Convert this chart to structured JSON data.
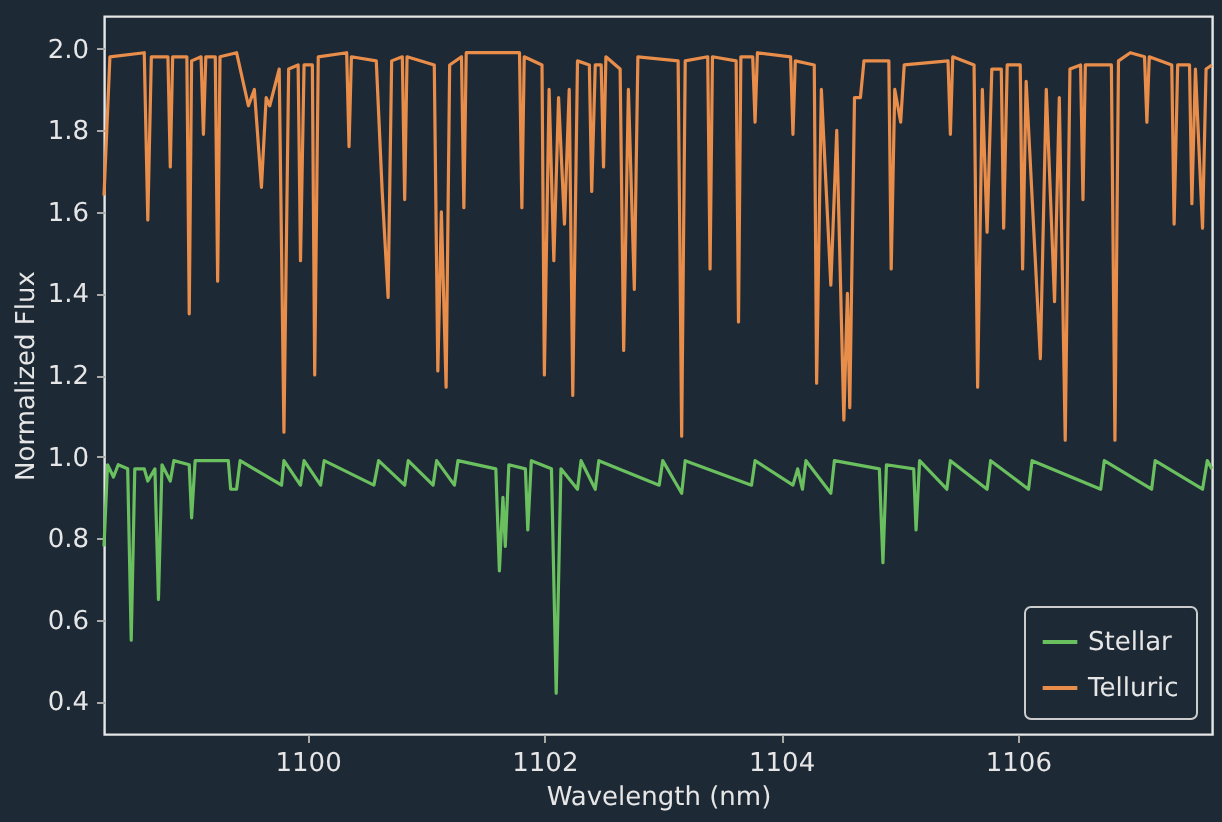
{
  "chart_data": {
    "type": "line",
    "xlabel": "Wavelength (nm)",
    "ylabel": "Normalized Flux",
    "xlim": [
      1098.28,
      1107.64
    ],
    "xticks": [
      1100,
      1102,
      1104,
      1106
    ],
    "ylim": [
      0.32,
      2.08
    ],
    "yticks": [
      {
        "value": 0.4,
        "label": "0.4"
      },
      {
        "value": 0.6,
        "label": "0.6"
      },
      {
        "value": 0.8,
        "label": "0.8"
      },
      {
        "value": 1.0,
        "label": "1.0"
      },
      {
        "value": 1.2,
        "label": "1.2"
      },
      {
        "value": 1.4,
        "label": "1.4"
      },
      {
        "value": 1.6,
        "label": "1.6"
      },
      {
        "value": 1.8,
        "label": "1.8"
      },
      {
        "value": 2.0,
        "label": "2.0"
      }
    ],
    "grid": false,
    "legend": "bottom right",
    "marker": "none",
    "line_style": "solid",
    "series": [
      {
        "name": "Stellar",
        "color": "#6abf5e",
        "x": [
          1098.28,
          1098.31,
          1098.36,
          1098.4,
          1098.48,
          1098.51,
          1098.54,
          1098.62,
          1098.65,
          1098.71,
          1098.74,
          1098.77,
          1098.84,
          1098.87,
          1099.0,
          1099.02,
          1099.05,
          1099.33,
          1099.35,
          1099.4,
          1099.43,
          1099.78,
          1099.8,
          1099.94,
          1099.97,
          1100.11,
          1100.14,
          1100.56,
          1100.6,
          1100.82,
          1100.85,
          1101.06,
          1101.09,
          1101.24,
          1101.27,
          1101.59,
          1101.62,
          1101.65,
          1101.67,
          1101.7,
          1101.84,
          1101.86,
          1101.89,
          1102.06,
          1102.1,
          1102.14,
          1102.28,
          1102.31,
          1102.43,
          1102.46,
          1102.97,
          1103.0,
          1103.16,
          1103.19,
          1103.75,
          1103.78,
          1104.1,
          1104.14,
          1104.18,
          1104.21,
          1104.42,
          1104.45,
          1104.83,
          1104.86,
          1104.89,
          1105.12,
          1105.14,
          1105.17,
          1105.4,
          1105.43,
          1105.74,
          1105.77,
          1106.09,
          1106.12,
          1106.7,
          1106.73,
          1107.13,
          1107.16,
          1107.56,
          1107.6,
          1107.64
        ],
        "values": [
          0.78,
          0.98,
          0.95,
          0.98,
          0.97,
          0.55,
          0.97,
          0.97,
          0.94,
          0.97,
          0.65,
          0.98,
          0.94,
          0.99,
          0.98,
          0.85,
          0.99,
          0.99,
          0.92,
          0.92,
          0.99,
          0.93,
          0.99,
          0.93,
          0.99,
          0.93,
          0.99,
          0.93,
          0.99,
          0.93,
          0.99,
          0.93,
          0.99,
          0.93,
          0.99,
          0.97,
          0.72,
          0.9,
          0.78,
          0.98,
          0.97,
          0.82,
          0.99,
          0.97,
          0.42,
          0.97,
          0.92,
          0.99,
          0.92,
          0.99,
          0.93,
          0.99,
          0.91,
          0.99,
          0.93,
          0.99,
          0.93,
          0.97,
          0.92,
          0.99,
          0.91,
          0.99,
          0.97,
          0.74,
          0.98,
          0.97,
          0.82,
          0.99,
          0.92,
          0.99,
          0.92,
          0.99,
          0.92,
          0.99,
          0.92,
          0.99,
          0.92,
          0.99,
          0.92,
          0.99,
          0.97
        ]
      },
      {
        "name": "Telluric",
        "color": "#e88d4a",
        "x": [
          1098.28,
          1098.33,
          1098.62,
          1098.65,
          1098.68,
          1098.82,
          1098.84,
          1098.86,
          1098.98,
          1099.0,
          1099.02,
          1099.1,
          1099.12,
          1099.14,
          1099.22,
          1099.24,
          1099.26,
          1099.4,
          1099.5,
          1099.55,
          1099.61,
          1099.65,
          1099.68,
          1099.76,
          1099.8,
          1099.84,
          1099.92,
          1099.94,
          1099.97,
          1100.04,
          1100.06,
          1100.09,
          1100.33,
          1100.35,
          1100.37,
          1100.58,
          1100.63,
          1100.68,
          1100.71,
          1100.8,
          1100.82,
          1100.84,
          1101.07,
          1101.1,
          1101.13,
          1101.17,
          1101.2,
          1101.3,
          1101.32,
          1101.34,
          1101.79,
          1101.81,
          1101.83,
          1101.98,
          1102.0,
          1102.04,
          1102.08,
          1102.12,
          1102.17,
          1102.21,
          1102.24,
          1102.28,
          1102.38,
          1102.4,
          1102.43,
          1102.48,
          1102.5,
          1102.52,
          1102.64,
          1102.67,
          1102.71,
          1102.76,
          1102.79,
          1103.13,
          1103.16,
          1103.19,
          1103.38,
          1103.4,
          1103.42,
          1103.62,
          1103.64,
          1103.66,
          1103.76,
          1103.78,
          1103.8,
          1104.08,
          1104.1,
          1104.12,
          1104.28,
          1104.3,
          1104.34,
          1104.42,
          1104.47,
          1104.53,
          1104.56,
          1104.58,
          1104.62,
          1104.67,
          1104.7,
          1104.91,
          1104.93,
          1104.96,
          1105.01,
          1105.04,
          1105.41,
          1105.43,
          1105.45,
          1105.63,
          1105.66,
          1105.7,
          1105.74,
          1105.78,
          1105.86,
          1105.88,
          1105.91,
          1106.02,
          1106.04,
          1106.07,
          1106.19,
          1106.24,
          1106.31,
          1106.35,
          1106.4,
          1106.44,
          1106.53,
          1106.55,
          1106.57,
          1106.79,
          1106.82,
          1106.85,
          1106.95,
          1107.07,
          1107.09,
          1107.11,
          1107.3,
          1107.32,
          1107.35,
          1107.45,
          1107.47,
          1107.5,
          1107.56,
          1107.59,
          1107.64
        ],
        "values": [
          1.64,
          1.98,
          1.99,
          1.58,
          1.98,
          1.98,
          1.71,
          1.98,
          1.98,
          1.35,
          1.97,
          1.98,
          1.79,
          1.98,
          1.98,
          1.43,
          1.98,
          1.99,
          1.86,
          1.9,
          1.66,
          1.88,
          1.86,
          1.95,
          1.06,
          1.95,
          1.96,
          1.48,
          1.96,
          1.96,
          1.2,
          1.98,
          1.99,
          1.76,
          1.98,
          1.97,
          1.65,
          1.39,
          1.97,
          1.98,
          1.63,
          1.98,
          1.96,
          1.21,
          1.6,
          1.17,
          1.96,
          1.98,
          1.61,
          1.99,
          1.99,
          1.61,
          1.98,
          1.96,
          1.2,
          1.9,
          1.48,
          1.88,
          1.57,
          1.9,
          1.15,
          1.97,
          1.96,
          1.65,
          1.96,
          1.96,
          1.71,
          1.98,
          1.95,
          1.26,
          1.9,
          1.41,
          1.98,
          1.97,
          1.05,
          1.97,
          1.98,
          1.46,
          1.98,
          1.97,
          1.33,
          1.98,
          1.98,
          1.82,
          1.99,
          1.98,
          1.79,
          1.97,
          1.96,
          1.18,
          1.9,
          1.42,
          1.8,
          1.09,
          1.4,
          1.12,
          1.88,
          1.88,
          1.97,
          1.97,
          1.46,
          1.9,
          1.82,
          1.96,
          1.97,
          1.79,
          1.98,
          1.96,
          1.17,
          1.9,
          1.55,
          1.95,
          1.95,
          1.56,
          1.96,
          1.96,
          1.46,
          1.92,
          1.24,
          1.9,
          1.38,
          1.88,
          1.04,
          1.95,
          1.96,
          1.63,
          1.96,
          1.96,
          1.04,
          1.97,
          1.99,
          1.98,
          1.82,
          1.98,
          1.96,
          1.57,
          1.96,
          1.96,
          1.62,
          1.95,
          1.56,
          1.95,
          1.96
        ]
      }
    ]
  }
}
